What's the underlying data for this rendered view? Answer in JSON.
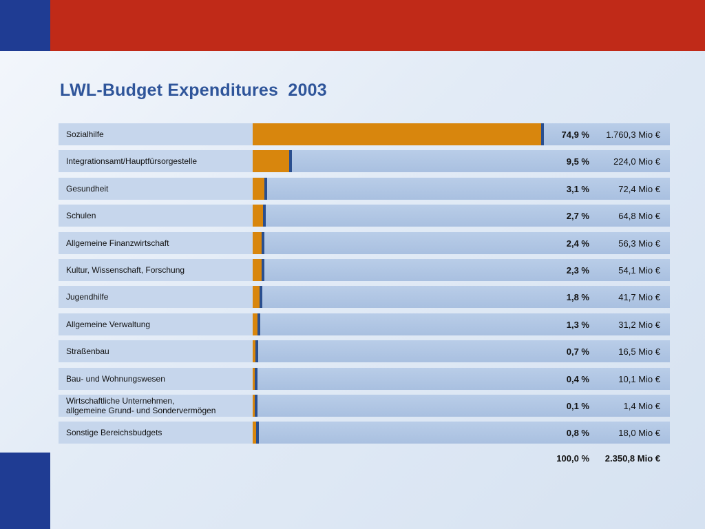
{
  "title": "LWL-Budget Expenditures  2003",
  "colors": {
    "red_band": "#c02a18",
    "blue_block": "#1f3c93",
    "title": "#2f559a",
    "bar_fill": "#d8860d",
    "bar_cap": "#2a4f8f",
    "track": "#b0c6e4",
    "label_cell": "#c6d6ec"
  },
  "chart_data": {
    "type": "bar",
    "orientation": "horizontal",
    "categories": [
      "Sozialhilfe",
      "Integrationsamt/Hauptfürsorgestelle",
      "Gesundheit",
      "Schulen",
      "Allgemeine Finanzwirtschaft",
      "Kultur, Wissenschaft, Forschung",
      "Jugendhilfe",
      "Allgemeine Verwaltung",
      "Straßenbau",
      "Bau- und Wohnungswesen",
      "Wirtschaftliche Unternehmen,\nallgemeine Grund- und Sondervermögen",
      "Sonstige Bereichsbudgets"
    ],
    "values": [
      74.9,
      9.5,
      3.1,
      2.7,
      2.4,
      2.3,
      1.8,
      1.3,
      0.7,
      0.4,
      0.1,
      0.8
    ],
    "percent_labels": [
      "74,9 %",
      "9,5 %",
      "3,1 %",
      "2,7 %",
      "2,4 %",
      "2,3 %",
      "1,8 %",
      "1,3 %",
      "0,7 %",
      "0,4 %",
      "0,1 %",
      "0,8 %"
    ],
    "amount_labels": [
      "1.760,3 Mio €",
      "224,0 Mio €",
      "72,4 Mio €",
      "64,8 Mio €",
      "56,3 Mio €",
      "54,1 Mio €",
      "41,7 Mio €",
      "31,2 Mio €",
      "16,5 Mio €",
      "10,1 Mio €",
      "1,4 Mio €",
      "18,0 Mio €"
    ],
    "amounts_mio_eur": [
      1760.3,
      224.0,
      72.4,
      64.8,
      56.3,
      54.1,
      41.7,
      31.2,
      16.5,
      10.1,
      1.4,
      18.0
    ],
    "xlim": [
      0,
      100
    ],
    "total_percent_label": "100,0 %",
    "total_amount_label": "2.350,8 Mio €",
    "grid": false,
    "legend": "none"
  }
}
